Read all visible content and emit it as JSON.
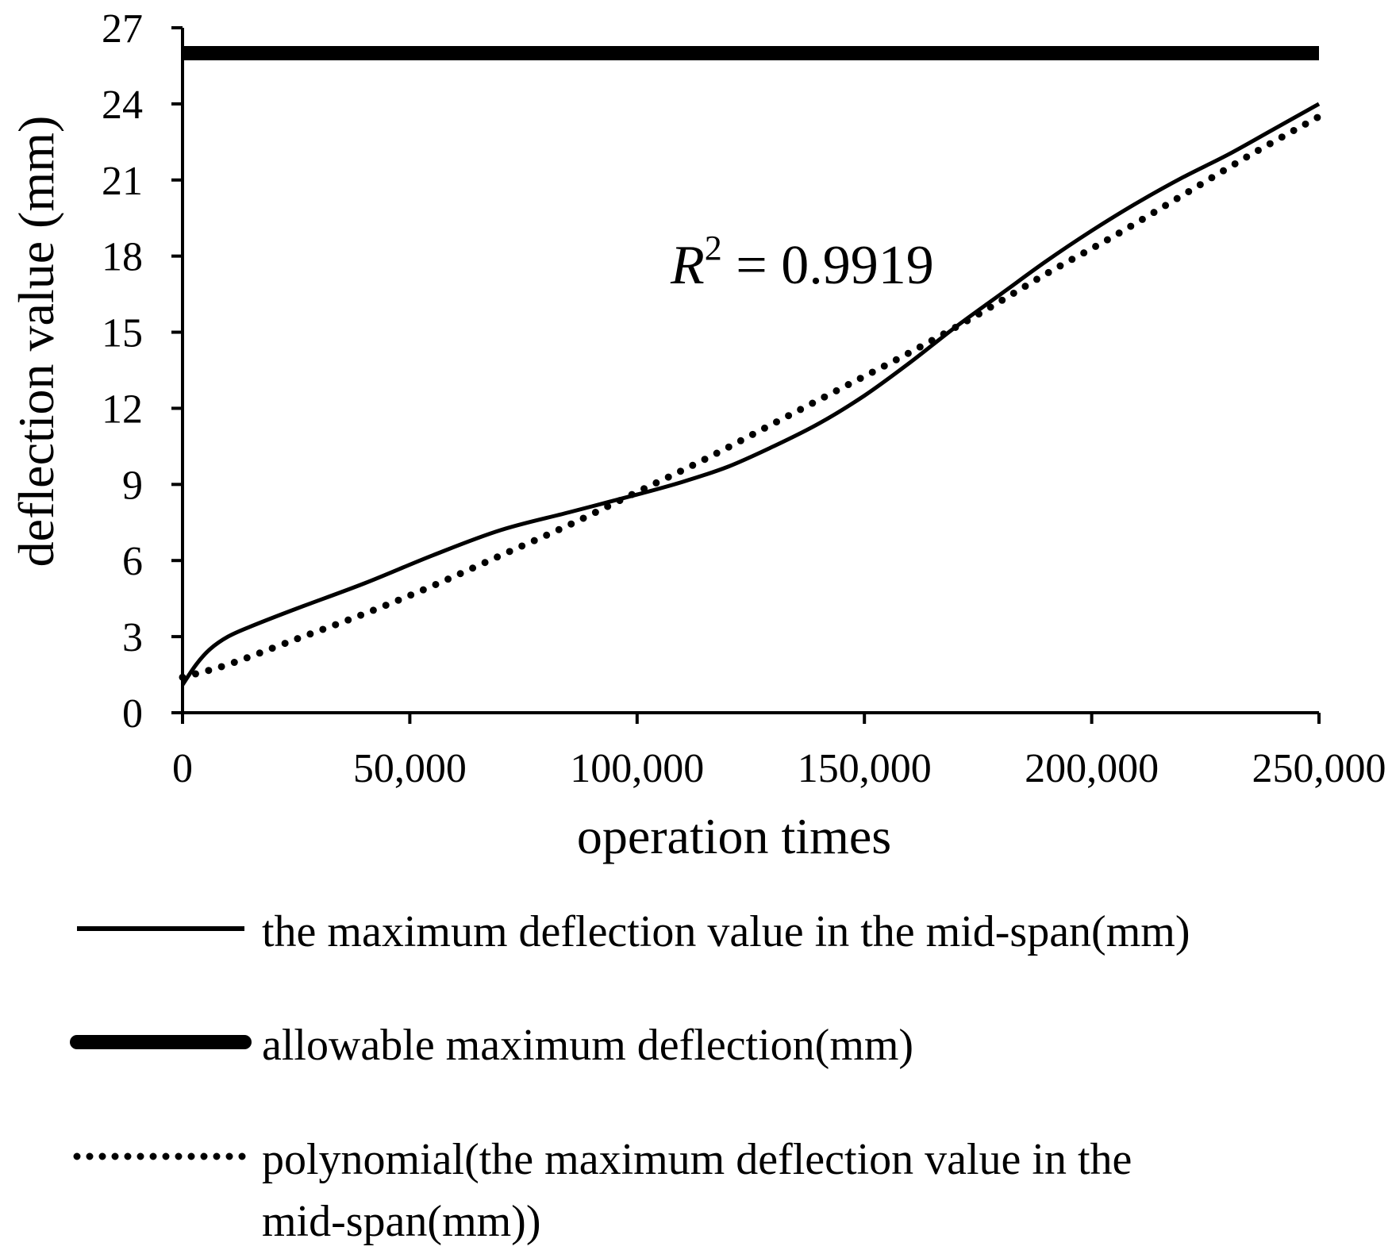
{
  "chart_data": {
    "type": "line",
    "xlabel": "operation times",
    "ylabel": "deflection value (mm)",
    "xlim": [
      0,
      250000
    ],
    "ylim": [
      0,
      27
    ],
    "x_ticks": [
      0,
      50000,
      100000,
      150000,
      200000,
      250000
    ],
    "x_tick_labels": [
      "0",
      "50,000",
      "100,000",
      "150,000",
      "200,000",
      "250,000"
    ],
    "y_ticks": [
      0,
      3,
      6,
      9,
      12,
      15,
      18,
      21,
      24,
      27
    ],
    "y_tick_labels": [
      "0",
      "3",
      "6",
      "9",
      "12",
      "15",
      "18",
      "21",
      "24",
      "27"
    ],
    "grid": false,
    "annotation": {
      "prefix": "R",
      "superscript": "2",
      "suffix": " = 0.9919"
    },
    "series": [
      {
        "name": "the maximum deflection value in the mid-span(mm)",
        "style": "solid",
        "x": [
          0,
          3000,
          6000,
          10000,
          15000,
          25000,
          40000,
          55000,
          70000,
          85000,
          100000,
          110000,
          120000,
          130000,
          140000,
          150000,
          160000,
          170000,
          180000,
          190000,
          200000,
          210000,
          220000,
          230000,
          240000,
          250000
        ],
        "values": [
          1.1,
          1.9,
          2.5,
          3.0,
          3.4,
          4.1,
          5.1,
          6.2,
          7.2,
          7.9,
          8.6,
          9.1,
          9.7,
          10.5,
          11.4,
          12.5,
          13.8,
          15.2,
          16.5,
          17.8,
          19.0,
          20.1,
          21.1,
          22.0,
          23.0,
          24.0
        ]
      },
      {
        "name": "allowable maximum deflection(mm)",
        "style": "thick",
        "x": [
          0,
          250000
        ],
        "values": [
          26,
          26
        ]
      },
      {
        "name": "polynomial(the maximum deflection value in the mid-span(mm))",
        "style": "dotted",
        "x": [
          0,
          10000,
          25000,
          40000,
          55000,
          70000,
          85000,
          100000,
          115000,
          130000,
          145000,
          160000,
          175000,
          190000,
          205000,
          220000,
          235000,
          250000
        ],
        "values": [
          1.4,
          1.9,
          2.9,
          3.9,
          5.0,
          6.2,
          7.4,
          8.7,
          10.0,
          11.4,
          12.8,
          14.2,
          15.7,
          17.3,
          18.8,
          20.4,
          22.0,
          23.5
        ]
      }
    ]
  },
  "legend": {
    "items": [
      {
        "lines": [
          "the maximum deflection value in the mid-span(mm)"
        ],
        "style": "solid"
      },
      {
        "lines": [
          "allowable maximum deflection(mm)"
        ],
        "style": "thick"
      },
      {
        "lines": [
          "polynomial(the maximum deflection value in the",
          "mid-span(mm))"
        ],
        "style": "dotted"
      }
    ]
  }
}
